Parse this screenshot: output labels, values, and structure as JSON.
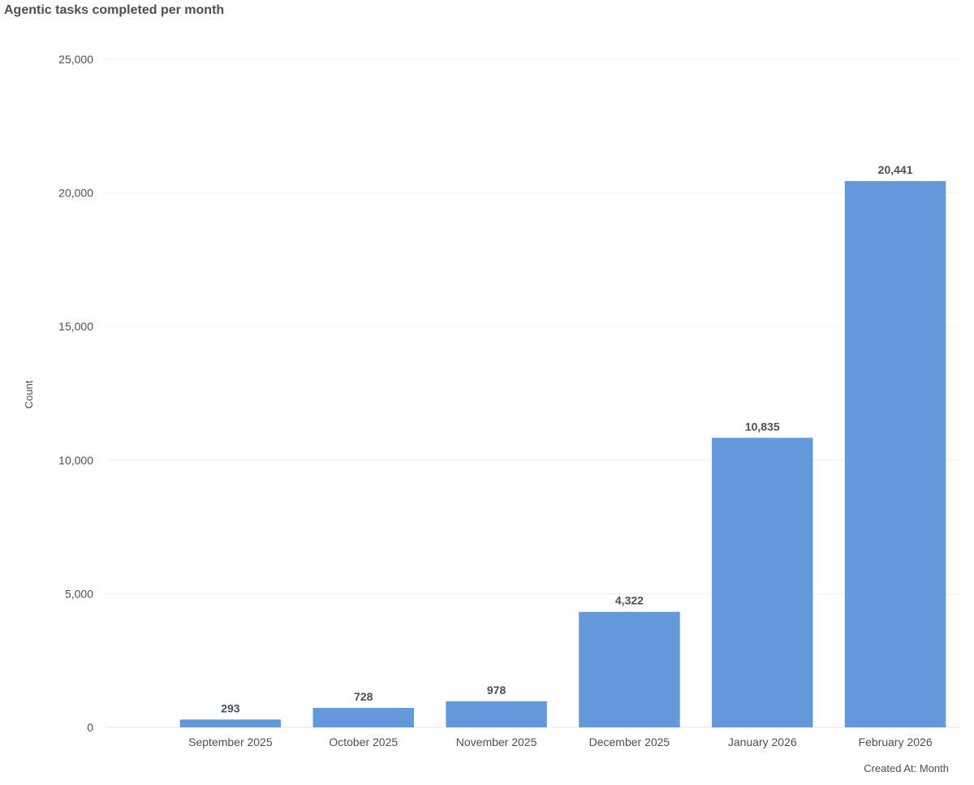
{
  "chart_data": {
    "type": "bar",
    "title": "Agentic tasks completed per month",
    "xlabel": "Created At: Month",
    "ylabel": "Count",
    "categories": [
      "September 2025",
      "October 2025",
      "November 2025",
      "December 2025",
      "January 2026",
      "February 2026"
    ],
    "values": [
      293,
      728,
      978,
      4322,
      10835,
      20441
    ],
    "value_labels": [
      "293",
      "728",
      "978",
      "4,322",
      "10,835",
      "20,441"
    ],
    "ylim": [
      0,
      25000
    ],
    "yticks": [
      0,
      5000,
      10000,
      15000,
      20000,
      25000
    ],
    "ytick_labels": [
      "0",
      "5,000",
      "10,000",
      "15,000",
      "20,000",
      "25,000"
    ],
    "grid": true,
    "legend": "none",
    "bar_color": "#6499dc"
  }
}
